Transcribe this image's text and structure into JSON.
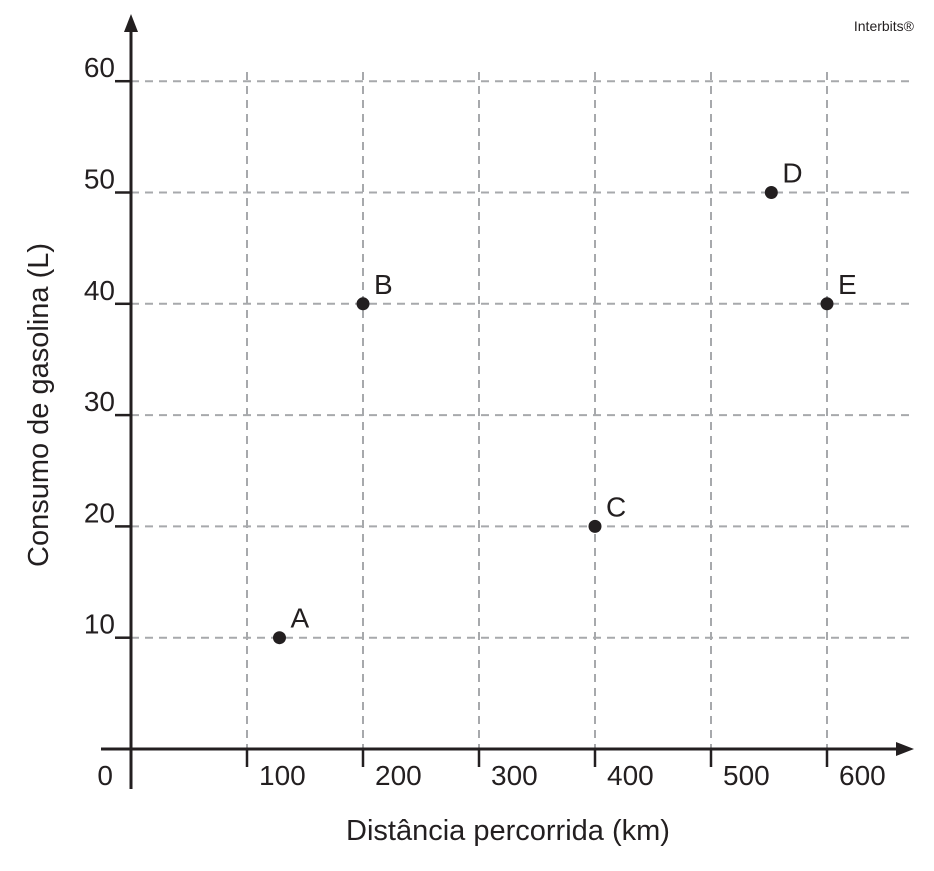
{
  "watermark": "Interbits®",
  "chart_data": {
    "type": "scatter",
    "title": "",
    "xlabel": "Distância percorrida (km)",
    "ylabel": "Consumo de gasolina (L)",
    "xlim": [
      0,
      600
    ],
    "ylim": [
      0,
      60
    ],
    "x_ticks": [
      100,
      200,
      300,
      400,
      500,
      600
    ],
    "y_ticks": [
      10,
      20,
      30,
      40,
      50,
      60
    ],
    "origin_label": "0",
    "grid": true,
    "series": [
      {
        "points": [
          {
            "label": "A",
            "x": 128,
            "y": 10
          },
          {
            "label": "B",
            "x": 200,
            "y": 40
          },
          {
            "label": "C",
            "x": 400,
            "y": 20
          },
          {
            "label": "D",
            "x": 552,
            "y": 50
          },
          {
            "label": "E",
            "x": 600,
            "y": 40
          }
        ]
      }
    ],
    "colors": {
      "axis": "#231f20",
      "grid": "#a7a9ac",
      "point": "#231f20"
    }
  }
}
